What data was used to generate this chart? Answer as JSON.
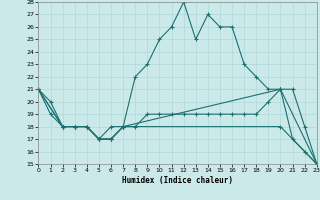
{
  "xlabel": "Humidex (Indice chaleur)",
  "xlim": [
    0,
    23
  ],
  "ylim": [
    15,
    28
  ],
  "yticks": [
    15,
    16,
    17,
    18,
    19,
    20,
    21,
    22,
    23,
    24,
    25,
    26,
    27,
    28
  ],
  "xticks": [
    0,
    1,
    2,
    3,
    4,
    5,
    6,
    7,
    8,
    9,
    10,
    11,
    12,
    13,
    14,
    15,
    16,
    17,
    18,
    19,
    20,
    21,
    22,
    23
  ],
  "bg_color": "#cce9e9",
  "line_color": "#1a7070",
  "grid_color": "#b0d8d8",
  "line1_x": [
    0,
    1,
    2,
    3,
    4,
    5,
    6,
    7,
    8,
    9,
    10,
    11,
    12,
    13,
    14,
    15,
    16,
    17,
    18,
    19,
    20,
    21,
    22,
    23
  ],
  "line1_y": [
    21,
    20,
    18,
    18,
    18,
    17,
    17,
    18,
    22,
    23,
    25,
    26,
    28,
    25,
    27,
    26,
    26,
    23,
    22,
    21,
    21,
    17,
    16,
    15
  ],
  "line2_x": [
    0,
    1,
    2,
    3,
    4,
    5,
    6,
    7,
    8,
    9,
    10,
    11,
    12,
    13,
    14,
    15,
    16,
    17,
    18,
    19,
    20,
    21,
    22,
    23
  ],
  "line2_y": [
    21,
    19,
    18,
    18,
    18,
    17,
    17,
    18,
    18,
    19,
    19,
    19,
    19,
    19,
    19,
    19,
    19,
    19,
    19,
    20,
    21,
    21,
    18,
    15
  ],
  "line3_x": [
    0,
    2,
    3,
    4,
    5,
    6,
    7,
    20,
    23
  ],
  "line3_y": [
    21,
    18,
    18,
    18,
    17,
    18,
    18,
    21,
    15
  ],
  "line4_x": [
    0,
    2,
    3,
    4,
    5,
    6,
    7,
    20,
    23
  ],
  "line4_y": [
    21,
    18,
    18,
    18,
    17,
    17,
    18,
    18,
    15
  ]
}
